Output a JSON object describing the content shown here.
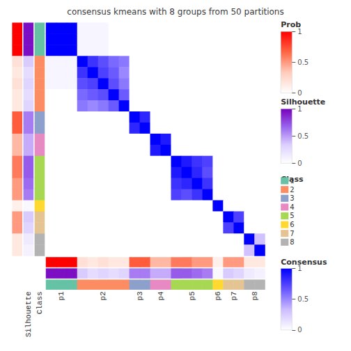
{
  "chart_data": {
    "type": "heatmap",
    "title": "consensus kmeans with 8 groups from 50 partitions",
    "cells": [
      [
        1.0,
        1.0,
        1.0,
        0.05,
        0.05,
        0.05,
        0.0,
        0.0,
        0.0,
        0.0,
        0.0,
        0.0,
        0.0,
        0.0,
        0.0,
        0.0,
        0.0,
        0.0,
        0.0,
        0.0,
        0.0
      ],
      [
        1.0,
        1.0,
        1.0,
        0.05,
        0.05,
        0.05,
        0.0,
        0.0,
        0.0,
        0.0,
        0.0,
        0.0,
        0.0,
        0.0,
        0.0,
        0.0,
        0.0,
        0.0,
        0.0,
        0.0,
        0.0
      ],
      [
        1.0,
        1.0,
        1.0,
        0.05,
        0.05,
        0.05,
        0.0,
        0.0,
        0.0,
        0.0,
        0.0,
        0.0,
        0.0,
        0.0,
        0.0,
        0.0,
        0.0,
        0.0,
        0.0,
        0.0,
        0.0
      ],
      [
        0.05,
        0.05,
        0.05,
        1.0,
        0.8,
        0.7,
        0.6,
        0.55,
        0.0,
        0.0,
        0.0,
        0.0,
        0.0,
        0.0,
        0.0,
        0.0,
        0.0,
        0.0,
        0.0,
        0.0,
        0.0
      ],
      [
        0.05,
        0.05,
        0.05,
        0.8,
        1.0,
        0.75,
        0.65,
        0.5,
        0.0,
        0.0,
        0.0,
        0.0,
        0.0,
        0.0,
        0.0,
        0.0,
        0.0,
        0.0,
        0.0,
        0.0,
        0.0
      ],
      [
        0.05,
        0.05,
        0.05,
        0.7,
        0.75,
        1.0,
        0.7,
        0.55,
        0.0,
        0.0,
        0.0,
        0.0,
        0.0,
        0.0,
        0.0,
        0.0,
        0.0,
        0.0,
        0.0,
        0.0,
        0.0
      ],
      [
        0.0,
        0.0,
        0.0,
        0.6,
        0.65,
        0.7,
        1.0,
        0.65,
        0.0,
        0.0,
        0.0,
        0.0,
        0.0,
        0.0,
        0.0,
        0.0,
        0.0,
        0.0,
        0.0,
        0.0,
        0.0
      ],
      [
        0.0,
        0.0,
        0.0,
        0.55,
        0.5,
        0.55,
        0.65,
        1.0,
        0.0,
        0.0,
        0.0,
        0.0,
        0.0,
        0.0,
        0.0,
        0.0,
        0.0,
        0.0,
        0.0,
        0.0,
        0.0
      ],
      [
        0.0,
        0.0,
        0.0,
        0.0,
        0.0,
        0.0,
        0.0,
        0.0,
        1.0,
        0.85,
        0.0,
        0.0,
        0.0,
        0.0,
        0.0,
        0.0,
        0.0,
        0.0,
        0.0,
        0.0,
        0.0
      ],
      [
        0.0,
        0.0,
        0.0,
        0.0,
        0.0,
        0.0,
        0.0,
        0.0,
        0.85,
        1.0,
        0.0,
        0.0,
        0.0,
        0.0,
        0.0,
        0.0,
        0.0,
        0.0,
        0.0,
        0.0,
        0.0
      ],
      [
        0.0,
        0.0,
        0.0,
        0.0,
        0.0,
        0.0,
        0.0,
        0.0,
        0.0,
        0.0,
        1.0,
        0.9,
        0.0,
        0.0,
        0.0,
        0.0,
        0.0,
        0.0,
        0.0,
        0.0,
        0.0
      ],
      [
        0.0,
        0.0,
        0.0,
        0.0,
        0.0,
        0.0,
        0.0,
        0.0,
        0.0,
        0.0,
        0.9,
        1.0,
        0.0,
        0.0,
        0.0,
        0.0,
        0.0,
        0.0,
        0.0,
        0.0,
        0.0
      ],
      [
        0.0,
        0.0,
        0.0,
        0.0,
        0.0,
        0.0,
        0.0,
        0.0,
        0.0,
        0.0,
        0.0,
        0.0,
        1.0,
        0.9,
        0.8,
        0.75,
        0.0,
        0.0,
        0.0,
        0.0,
        0.0
      ],
      [
        0.0,
        0.0,
        0.0,
        0.0,
        0.0,
        0.0,
        0.0,
        0.0,
        0.0,
        0.0,
        0.0,
        0.0,
        0.9,
        1.0,
        0.85,
        0.7,
        0.0,
        0.0,
        0.0,
        0.0,
        0.0
      ],
      [
        0.0,
        0.0,
        0.0,
        0.0,
        0.0,
        0.0,
        0.0,
        0.0,
        0.0,
        0.0,
        0.0,
        0.0,
        0.8,
        0.85,
        1.0,
        0.8,
        0.0,
        0.0,
        0.0,
        0.0,
        0.0
      ],
      [
        0.0,
        0.0,
        0.0,
        0.0,
        0.0,
        0.0,
        0.0,
        0.0,
        0.0,
        0.0,
        0.0,
        0.0,
        0.75,
        0.7,
        0.8,
        1.0,
        0.0,
        0.0,
        0.0,
        0.0,
        0.0
      ],
      [
        0.0,
        0.0,
        0.0,
        0.0,
        0.0,
        0.0,
        0.0,
        0.0,
        0.0,
        0.0,
        0.0,
        0.0,
        0.0,
        0.0,
        0.0,
        0.0,
        1.0,
        0.0,
        0.0,
        0.0,
        0.0
      ],
      [
        0.0,
        0.0,
        0.0,
        0.0,
        0.0,
        0.0,
        0.0,
        0.0,
        0.0,
        0.0,
        0.0,
        0.0,
        0.0,
        0.0,
        0.0,
        0.0,
        0.0,
        1.0,
        0.75,
        0.0,
        0.0
      ],
      [
        0.0,
        0.0,
        0.0,
        0.0,
        0.0,
        0.0,
        0.0,
        0.0,
        0.0,
        0.0,
        0.0,
        0.0,
        0.0,
        0.0,
        0.0,
        0.0,
        0.0,
        0.75,
        1.0,
        0.0,
        0.0
      ],
      [
        0.0,
        0.0,
        0.0,
        0.0,
        0.0,
        0.0,
        0.0,
        0.0,
        0.0,
        0.0,
        0.0,
        0.0,
        0.0,
        0.0,
        0.0,
        0.0,
        0.0,
        0.0,
        0.0,
        1.0,
        0.3
      ],
      [
        0.0,
        0.0,
        0.0,
        0.0,
        0.0,
        0.0,
        0.0,
        0.0,
        0.0,
        0.0,
        0.0,
        0.0,
        0.0,
        0.0,
        0.0,
        0.0,
        0.0,
        0.0,
        0.0,
        0.3,
        1.0
      ]
    ],
    "range": [
      0,
      1
    ],
    "ticks": [
      0,
      0.5,
      1
    ],
    "colors": [
      "#FFFFFF",
      "#CCBBFF",
      "#6655FF",
      "#0000FF"
    ],
    "colorbar_title": "Consensus",
    "strips": [
      {
        "name": "Prob",
        "values": [
          1.0,
          1.0,
          1.0,
          0.2,
          0.15,
          0.2,
          0.15,
          0.15,
          0.7,
          0.7,
          0.4,
          0.4,
          0.6,
          0.6,
          0.5,
          0.5,
          0.1,
          0.5,
          0.5,
          0.15,
          0.15
        ],
        "range": [
          0,
          1
        ],
        "ticks": [
          0,
          0.5,
          1
        ],
        "colors": [
          "#FFFFFF",
          "#FFCCBB",
          "#FF6644",
          "#FF0000"
        ]
      },
      {
        "name": "Silhouette",
        "label": "Silhouette",
        "values": [
          0.95,
          0.95,
          0.95,
          0.35,
          0.25,
          0.3,
          0.25,
          0.3,
          0.6,
          0.6,
          0.45,
          0.45,
          0.7,
          0.7,
          0.65,
          0.6,
          0.05,
          0.35,
          0.3,
          0.15,
          0.1
        ],
        "range": [
          0,
          1
        ],
        "ticks": [
          0,
          0.5,
          1
        ],
        "colors": [
          "#FFFFFF",
          "#DDD0FF",
          "#9966EE",
          "#7700BB"
        ]
      },
      {
        "name": "Class",
        "label": "Class",
        "values": [
          "1",
          "1",
          "1",
          "2",
          "2",
          "2",
          "2",
          "2",
          "3",
          "3",
          "4",
          "4",
          "5",
          "5",
          "5",
          "5",
          "6",
          "7",
          "7",
          "8",
          "8"
        ],
        "categories": [
          "1",
          "2",
          "3",
          "4",
          "5",
          "6",
          "7",
          "8"
        ],
        "colors": [
          "#66C2A5",
          "#FC8D62",
          "#8DA0CB",
          "#E78AC3",
          "#A6D854",
          "#FFD92F",
          "#E5C494",
          "#B3B3B3"
        ]
      }
    ],
    "column_labels": [
      "p1",
      "p2",
      "p3",
      "p4",
      "p5",
      "p6",
      "p7",
      "p8"
    ],
    "group_boundaries": [
      0,
      3,
      8,
      10,
      12,
      16,
      17,
      19,
      21
    ]
  }
}
